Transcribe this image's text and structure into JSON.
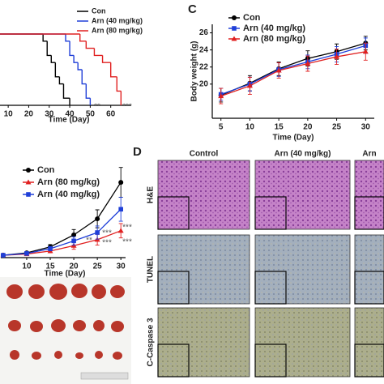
{
  "chart_data": [
    {
      "type": "line",
      "step": true,
      "xlabel": "Time (Day)",
      "xlim": [
        6,
        70
      ],
      "ylim": [
        0,
        100
      ],
      "xticks": [
        10,
        20,
        30,
        40,
        50,
        60
      ],
      "series": [
        {
          "name": "Con",
          "color": "#000000",
          "x": [
            0,
            27,
            29,
            31,
            33,
            35,
            37,
            40
          ],
          "values": [
            100,
            90,
            70,
            60,
            40,
            30,
            10,
            0
          ]
        },
        {
          "name": "Arn (40 mg/kg)",
          "color": "#1f3fd8",
          "x": [
            0,
            38,
            40,
            42,
            44,
            46,
            48,
            50
          ],
          "values": [
            100,
            90,
            70,
            60,
            50,
            30,
            10,
            0
          ]
        },
        {
          "name": "Arn (80 mg/kg)",
          "color": "#e02020",
          "x": [
            0,
            45,
            48,
            52,
            56,
            60,
            63,
            65
          ],
          "values": [
            100,
            90,
            80,
            70,
            60,
            40,
            20,
            0
          ]
        }
      ],
      "annotations": [
        "**",
        "***"
      ]
    },
    {
      "type": "line",
      "xlabel": "Time (Day)",
      "ylabel": "Body weight (g)",
      "xlim": [
        3.5,
        31.5
      ],
      "ylim": [
        16,
        27
      ],
      "xticks": [
        5,
        10,
        15,
        20,
        25,
        30
      ],
      "yticks": [
        20,
        22,
        24,
        26
      ],
      "series": [
        {
          "name": "Con",
          "color": "#000000",
          "marker": "circle",
          "x": [
            5,
            10,
            15,
            20,
            25,
            30
          ],
          "values": [
            18.7,
            20.1,
            21.8,
            23.0,
            23.8,
            24.8
          ],
          "errors": [
            0.8,
            0.9,
            0.8,
            0.9,
            0.9,
            0.8
          ]
        },
        {
          "name": "Arn (40 mg/kg)",
          "color": "#1f3fd8",
          "marker": "square",
          "x": [
            5,
            10,
            15,
            20,
            25,
            30
          ],
          "values": [
            18.8,
            20.0,
            21.7,
            22.6,
            23.5,
            24.5
          ],
          "errors": [
            0.7,
            0.8,
            0.8,
            0.8,
            0.9,
            0.9
          ]
        },
        {
          "name": "Arn (80 mg/kg)",
          "color": "#e02020",
          "marker": "triangle",
          "x": [
            5,
            10,
            15,
            20,
            25,
            30
          ],
          "values": [
            18.6,
            19.8,
            21.6,
            22.4,
            23.2,
            23.8
          ],
          "errors": [
            0.9,
            1.0,
            0.9,
            0.9,
            0.9,
            1.0
          ]
        }
      ]
    },
    {
      "type": "line",
      "xlabel": "Time (Day)",
      "xlim": [
        4.5,
        31
      ],
      "ylim": [
        0,
        1600
      ],
      "xticks": [
        10,
        15,
        20,
        25,
        30
      ],
      "series": [
        {
          "name": "Con",
          "color": "#000000",
          "marker": "circle",
          "x": [
            5,
            10,
            15,
            20,
            25,
            30
          ],
          "values": [
            40,
            80,
            180,
            380,
            650,
            1260
          ],
          "errors": [
            10,
            20,
            40,
            90,
            150,
            250
          ]
        },
        {
          "name": "Arn (80 mg/kg)",
          "color": "#e02020",
          "marker": "triangle",
          "x": [
            5,
            10,
            15,
            20,
            25,
            30
          ],
          "values": [
            40,
            60,
            110,
            200,
            300,
            450
          ],
          "errors": [
            10,
            15,
            30,
            60,
            90,
            120
          ]
        },
        {
          "name": "Arn (40 mg/kg)",
          "color": "#1f3fd8",
          "marker": "square",
          "x": [
            5,
            10,
            15,
            20,
            25,
            30
          ],
          "values": [
            40,
            70,
            150,
            280,
            420,
            810
          ],
          "errors": [
            10,
            15,
            35,
            70,
            110,
            200
          ]
        }
      ],
      "annotations": [
        "**",
        "***",
        "***",
        "***",
        "***"
      ]
    }
  ],
  "panel_labels": [
    "C",
    "D"
  ],
  "micrographs": {
    "columns": [
      "Control",
      "Arn (40 mg/kg)",
      "Arn"
    ],
    "rows": [
      "H&E",
      "TUNEL",
      "C-Caspase 3"
    ]
  }
}
